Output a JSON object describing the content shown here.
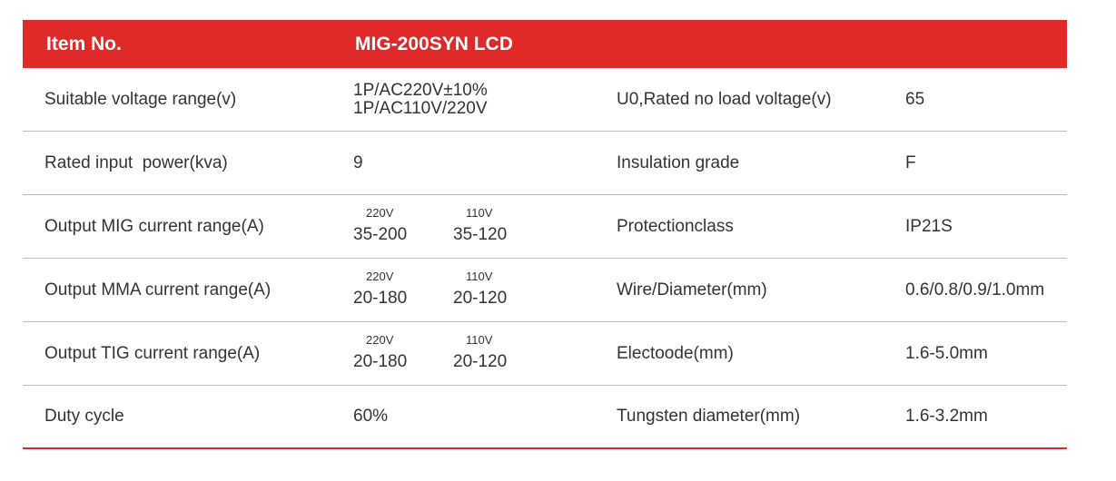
{
  "header": {
    "label": "Item No.",
    "value": "MIG-200SYN LCD"
  },
  "rows": [
    {
      "left_label": "Suitable voltage range(v)",
      "left_value_lines": [
        "1P/AC220V±10%",
        "1P/AC110V/220V"
      ],
      "right_label": "U0,Rated no load voltage(v)",
      "right_value": "65"
    },
    {
      "left_label": "Rated input  power(kva)",
      "left_value": "9",
      "right_label": "Insulation grade",
      "right_value": "F"
    },
    {
      "left_label": "Output MIG current range(A)",
      "pair": [
        {
          "voltage": "220V",
          "range": "35-200"
        },
        {
          "voltage": "110V",
          "range": "35-120"
        }
      ],
      "right_label": "Protectionclass",
      "right_value": "IP21S"
    },
    {
      "left_label": "Output MMA current range(A)",
      "pair": [
        {
          "voltage": "220V",
          "range": "20-180"
        },
        {
          "voltage": "110V",
          "range": "20-120"
        }
      ],
      "right_label": "Wire/Diameter(mm)",
      "right_value": "0.6/0.8/0.9/1.0mm"
    },
    {
      "left_label": "Output TIG current range(A)",
      "pair": [
        {
          "voltage": "220V",
          "range": "20-180"
        },
        {
          "voltage": "110V",
          "range": "20-120"
        }
      ],
      "right_label": "Electoode(mm)",
      "right_value": "1.6-5.0mm"
    },
    {
      "left_label": "Duty cycle",
      "left_value": "60%",
      "right_label": "Tungsten diameter(mm)",
      "right_value": "1.6-3.2mm"
    }
  ],
  "colors": {
    "accent": "#e02a2a",
    "text": "#333333",
    "divider": "#bdbdbd"
  }
}
